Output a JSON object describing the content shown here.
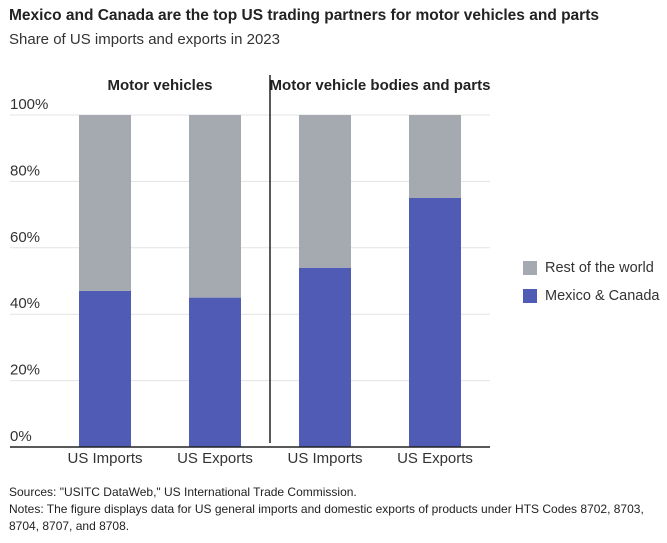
{
  "chart_data": {
    "type": "stacked-bar",
    "title": "Mexico and Canada are the top US trading partners for motor vehicles and parts",
    "subtitle": "Share of US imports and exports in 2023",
    "groups": [
      "Motor vehicles",
      "Motor vehicle bodies and parts"
    ],
    "categories": [
      "US Imports",
      "US Exports",
      "US Imports",
      "US Exports"
    ],
    "series": [
      {
        "name": "Mexico & Canada",
        "color": "#4f5bb5",
        "values": [
          47,
          45,
          54,
          75
        ]
      },
      {
        "name": "Rest of the world",
        "color": "#a5aab1",
        "values": [
          53,
          55,
          46,
          25
        ]
      }
    ],
    "ylim": [
      0,
      100
    ],
    "yticks": [
      {
        "value": 0,
        "label": "0%"
      },
      {
        "value": 20,
        "label": "20%"
      },
      {
        "value": 40,
        "label": "40%"
      },
      {
        "value": 60,
        "label": "60%"
      },
      {
        "value": 80,
        "label": "80%"
      },
      {
        "value": 100,
        "label": "100%"
      }
    ],
    "grid": true,
    "legend": "right",
    "sources": "Sources: \"USITC DataWeb,\" US International Trade Commission.",
    "notes": "Notes: The figure displays data for US general imports and domestic exports of products under HTS Codes 8702, 8703, 8704, 8707, and 8708."
  }
}
